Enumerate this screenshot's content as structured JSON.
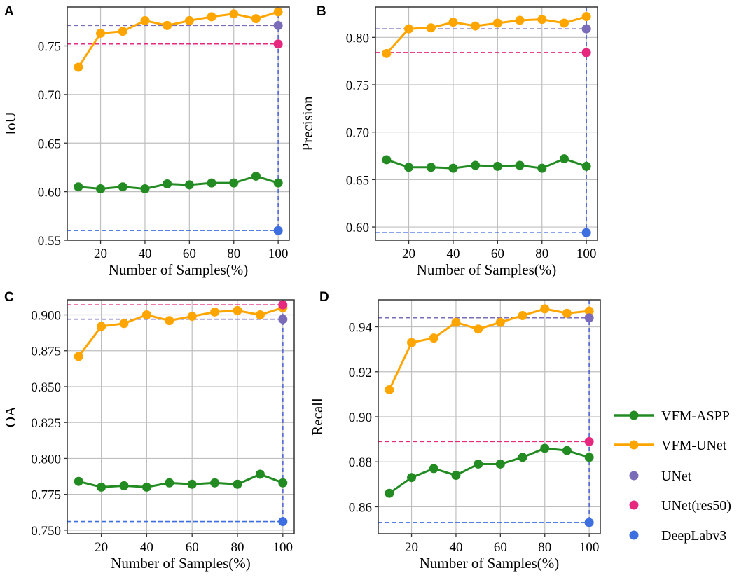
{
  "chart_data": [
    {
      "panel": "A",
      "type": "line",
      "xlabel": "Number of Samples(%)",
      "ylabel": "IoU",
      "xlim": [
        5,
        105
      ],
      "ylim": [
        0.55,
        0.79
      ],
      "xticks": [
        20,
        40,
        60,
        80,
        100
      ],
      "yticks": [
        0.55,
        0.6,
        0.65,
        0.7,
        0.75
      ],
      "ytick_labels": [
        "0.55",
        "0.60",
        "0.65",
        "0.70",
        "0.75"
      ],
      "x": [
        10,
        20,
        30,
        40,
        50,
        60,
        70,
        80,
        90,
        100
      ],
      "series": [
        {
          "name": "VFM-ASPP",
          "values": [
            0.605,
            0.603,
            0.605,
            0.603,
            0.608,
            0.607,
            0.609,
            0.609,
            0.616,
            0.609
          ]
        },
        {
          "name": "VFM-UNet",
          "values": [
            0.728,
            0.763,
            0.765,
            0.776,
            0.771,
            0.776,
            0.78,
            0.783,
            0.778,
            0.785
          ]
        }
      ],
      "baselines": [
        {
          "name": "UNet",
          "value": 0.771
        },
        {
          "name": "UNet(res50)",
          "value": 0.752
        },
        {
          "name": "DeepLabv3",
          "value": 0.56
        }
      ]
    },
    {
      "panel": "B",
      "type": "line",
      "xlabel": "Number of Samples(%)",
      "ylabel": "Precision",
      "xlim": [
        5,
        105
      ],
      "ylim": [
        0.586,
        0.832
      ],
      "xticks": [
        20,
        40,
        60,
        80,
        100
      ],
      "yticks": [
        0.6,
        0.65,
        0.7,
        0.75,
        0.8
      ],
      "ytick_labels": [
        "0.60",
        "0.65",
        "0.70",
        "0.75",
        "0.80"
      ],
      "x": [
        10,
        20,
        30,
        40,
        50,
        60,
        70,
        80,
        90,
        100
      ],
      "series": [
        {
          "name": "VFM-ASPP",
          "values": [
            0.671,
            0.663,
            0.663,
            0.662,
            0.665,
            0.664,
            0.665,
            0.662,
            0.672,
            0.664
          ]
        },
        {
          "name": "VFM-UNet",
          "values": [
            0.783,
            0.809,
            0.81,
            0.816,
            0.812,
            0.815,
            0.818,
            0.819,
            0.815,
            0.822
          ]
        }
      ],
      "baselines": [
        {
          "name": "UNet",
          "value": 0.809
        },
        {
          "name": "UNet(res50)",
          "value": 0.784
        },
        {
          "name": "DeepLabv3",
          "value": 0.594
        }
      ]
    },
    {
      "panel": "C",
      "type": "line",
      "xlabel": "Number of Samples(%)",
      "ylabel": "OA",
      "xlim": [
        5,
        105
      ],
      "ylim": [
        0.7475,
        0.9105
      ],
      "xticks": [
        20,
        40,
        60,
        80,
        100
      ],
      "yticks": [
        0.75,
        0.775,
        0.8,
        0.825,
        0.85,
        0.875,
        0.9
      ],
      "ytick_labels": [
        "0.750",
        "0.775",
        "0.800",
        "0.825",
        "0.850",
        "0.875",
        "0.900"
      ],
      "x": [
        10,
        20,
        30,
        40,
        50,
        60,
        70,
        80,
        90,
        100
      ],
      "series": [
        {
          "name": "VFM-ASPP",
          "values": [
            0.784,
            0.78,
            0.781,
            0.78,
            0.783,
            0.782,
            0.783,
            0.782,
            0.789,
            0.783
          ]
        },
        {
          "name": "VFM-UNet",
          "values": [
            0.871,
            0.892,
            0.894,
            0.9,
            0.896,
            0.899,
            0.902,
            0.903,
            0.9,
            0.905
          ]
        }
      ],
      "baselines": [
        {
          "name": "UNet",
          "value": 0.897
        },
        {
          "name": "UNet(res50)",
          "value": 0.907
        },
        {
          "name": "DeepLabv3",
          "value": 0.756
        }
      ]
    },
    {
      "panel": "D",
      "type": "line",
      "xlabel": "Number of Samples(%)",
      "ylabel": "Recall",
      "xlim": [
        5,
        105
      ],
      "ylim": [
        0.848,
        0.952
      ],
      "xticks": [
        20,
        40,
        60,
        80,
        100
      ],
      "yticks": [
        0.86,
        0.88,
        0.9,
        0.92,
        0.94
      ],
      "ytick_labels": [
        "0.86",
        "0.88",
        "0.90",
        "0.92",
        "0.94"
      ],
      "x": [
        10,
        20,
        30,
        40,
        50,
        60,
        70,
        80,
        90,
        100
      ],
      "series": [
        {
          "name": "VFM-ASPP",
          "values": [
            0.866,
            0.873,
            0.877,
            0.874,
            0.879,
            0.879,
            0.882,
            0.886,
            0.885,
            0.882
          ]
        },
        {
          "name": "VFM-UNet",
          "values": [
            0.912,
            0.933,
            0.935,
            0.942,
            0.939,
            0.942,
            0.945,
            0.948,
            0.946,
            0.947
          ]
        }
      ],
      "baselines": [
        {
          "name": "UNet",
          "value": 0.944
        },
        {
          "name": "UNet(res50)",
          "value": 0.889
        },
        {
          "name": "DeepLabv3",
          "value": 0.853
        }
      ]
    }
  ],
  "legend": {
    "placement": "right",
    "items": [
      {
        "name": "VFM-ASPP",
        "kind": "line"
      },
      {
        "name": "VFM-UNet",
        "kind": "line"
      },
      {
        "name": "UNet",
        "kind": "dot"
      },
      {
        "name": "UNet(res50)",
        "kind": "dot"
      },
      {
        "name": "DeepLabv3",
        "kind": "dot"
      }
    ]
  },
  "colors": {
    "VFM-ASPP": "#228b22",
    "VFM-UNet": "#ffa500",
    "UNet": "#7a6cb8",
    "UNet(res50)": "#e6287f",
    "DeepLabv3": "#3d6fe0",
    "grid": "#bfbfbf",
    "axes": "#333333"
  }
}
